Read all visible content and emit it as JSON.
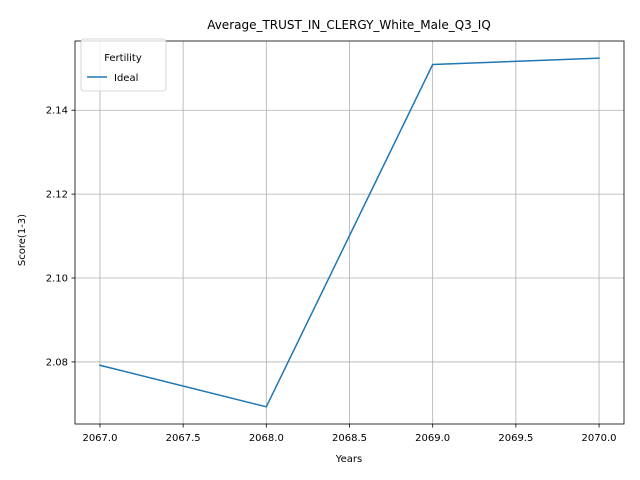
{
  "chart_data": {
    "type": "line",
    "title": "Average_TRUST_IN_CLERGY_White_Male_Q3_IQ",
    "xlabel": "Years",
    "ylabel": "Score(1-3)",
    "x": [
      2067,
      2068,
      2069,
      2070
    ],
    "series": [
      {
        "name": "Ideal",
        "values": [
          2.0792,
          2.0693,
          2.1509,
          2.1524
        ],
        "color": "#1f77b4"
      }
    ],
    "xlim": [
      2066.85,
      2070.15
    ],
    "ylim": [
      2.0652,
      2.1565
    ],
    "xticks": [
      2067.0,
      2067.5,
      2068.0,
      2068.5,
      2069.0,
      2069.5,
      2070.0
    ],
    "xtick_labels": [
      "2067.0",
      "2067.5",
      "2068.0",
      "2068.5",
      "2069.0",
      "2069.5",
      "2070.0"
    ],
    "yticks": [
      2.08,
      2.1,
      2.12,
      2.14
    ],
    "ytick_labels": [
      "2.08",
      "2.10",
      "2.12",
      "2.14"
    ],
    "grid": true,
    "legend": {
      "title": "Fertility",
      "placement": "upper-left"
    }
  }
}
